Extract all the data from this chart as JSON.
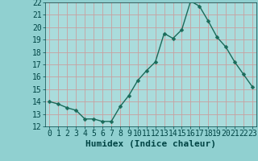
{
  "x": [
    0,
    1,
    2,
    3,
    4,
    5,
    6,
    7,
    8,
    9,
    10,
    11,
    12,
    13,
    14,
    15,
    16,
    17,
    18,
    19,
    20,
    21,
    22,
    23
  ],
  "y": [
    14.0,
    13.8,
    13.5,
    13.3,
    12.6,
    12.6,
    12.4,
    12.4,
    13.6,
    14.5,
    15.7,
    16.5,
    17.2,
    19.5,
    19.1,
    19.8,
    22.1,
    21.7,
    20.5,
    19.2,
    18.4,
    17.2,
    16.2,
    15.2
  ],
  "xlabel": "Humidex (Indice chaleur)",
  "ylim": [
    12,
    22
  ],
  "xlim": [
    -0.5,
    23.5
  ],
  "yticks": [
    12,
    13,
    14,
    15,
    16,
    17,
    18,
    19,
    20,
    21,
    22
  ],
  "xticks": [
    0,
    1,
    2,
    3,
    4,
    5,
    6,
    7,
    8,
    9,
    10,
    11,
    12,
    13,
    14,
    15,
    16,
    17,
    18,
    19,
    20,
    21,
    22,
    23
  ],
  "line_color": "#1a6b5a",
  "marker_color": "#1a6b5a",
  "bg_color": "#90d0d0",
  "grid_color": "#c8a0a0",
  "plot_bg": "#aadcdc",
  "xlabel_fontsize": 8,
  "tick_fontsize": 7,
  "linewidth": 1.0,
  "markersize": 2.5
}
